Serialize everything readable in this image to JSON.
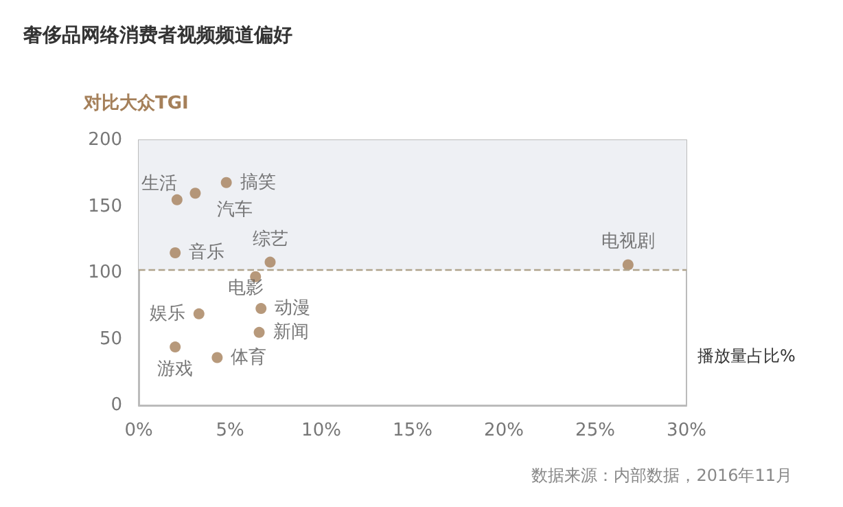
{
  "chart_data": {
    "type": "scatter",
    "title": "奢侈品网络消费者视频频道偏好",
    "ylabel": "对比大众TGI",
    "xlabel": "播放量占比%",
    "annotations": [
      "数据来源：内部数据，2016年11月"
    ],
    "series": [
      {
        "name": "生活",
        "color": "#a5805a",
        "x": [
          2.1
        ],
        "values": [
          155
        ]
      },
      {
        "name": "汽车",
        "color": "#a5805a",
        "x": [
          3.1
        ],
        "values": [
          160
        ]
      },
      {
        "name": "搞笑",
        "color": "#a5805a",
        "x": [
          4.8
        ],
        "values": [
          168
        ]
      },
      {
        "name": "音乐",
        "color": "#a5805a",
        "x": [
          2.0
        ],
        "values": [
          115
        ]
      },
      {
        "name": "综艺",
        "color": "#a5805a",
        "x": [
          7.2
        ],
        "values": [
          108
        ]
      },
      {
        "name": "电影",
        "color": "#a5805a",
        "x": [
          6.4
        ],
        "values": [
          97
        ]
      },
      {
        "name": "娱乐",
        "color": "#a5805a",
        "x": [
          3.3
        ],
        "values": [
          69
        ]
      },
      {
        "name": "动漫",
        "color": "#a5805a",
        "x": [
          6.7
        ],
        "values": [
          73
        ]
      },
      {
        "name": "新闻",
        "color": "#a5805a",
        "x": [
          6.6
        ],
        "values": [
          55
        ]
      },
      {
        "name": "游戏",
        "color": "#a5805a",
        "x": [
          2.0
        ],
        "values": [
          44
        ]
      },
      {
        "name": "体育",
        "color": "#a5805a",
        "x": [
          4.3
        ],
        "values": [
          36
        ]
      },
      {
        "name": "电视剧",
        "color": "#a5805a",
        "x": [
          26.8
        ],
        "values": [
          106
        ]
      }
    ],
    "xlim": [
      0,
      30
    ],
    "xticks": [
      {
        "value": 0,
        "label": "0%"
      },
      {
        "value": 5,
        "label": "5%"
      },
      {
        "value": 10,
        "label": "10%"
      },
      {
        "value": 15,
        "label": "15%"
      },
      {
        "value": 20,
        "label": "20%"
      },
      {
        "value": 25,
        "label": "25%"
      },
      {
        "value": 30,
        "label": "30%"
      }
    ],
    "ylim": [
      0,
      200
    ],
    "yticks": [
      0,
      50,
      100,
      150,
      200
    ],
    "bands": [
      {
        "axis": "y",
        "from": 102,
        "to": 200,
        "color": "#eef0f4"
      }
    ],
    "ref_lines": [
      {
        "axis": "y",
        "value": 102,
        "color": "#b0a48c",
        "line_style": "dashed"
      }
    ],
    "marker": "circle",
    "grid": false,
    "legend": false
  }
}
